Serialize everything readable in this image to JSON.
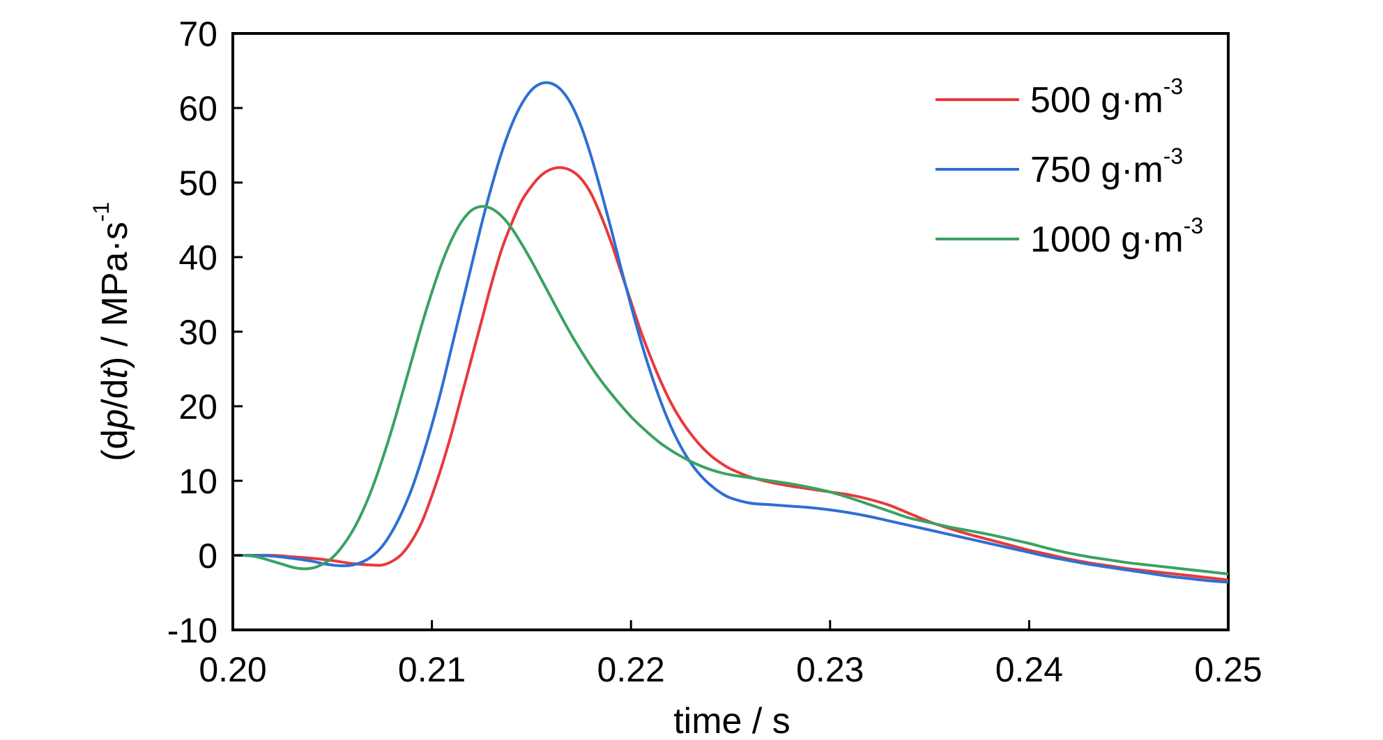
{
  "chart_data": {
    "type": "line",
    "title": "",
    "xlabel": "time / s",
    "ylabel": {
      "prefix": "(d",
      "p": "p",
      "mid": "/d",
      "t": "t",
      "suffix": ") / MPa·s",
      "exponent": "-1"
    },
    "xlim": [
      0.2,
      0.25
    ],
    "ylim": [
      -10,
      70
    ],
    "x_ticks": [
      "0.20",
      "0.21",
      "0.22",
      "0.23",
      "0.24",
      "0.25"
    ],
    "y_ticks": [
      "-10",
      "0",
      "10",
      "20",
      "30",
      "40",
      "50",
      "60",
      "70"
    ],
    "grid": false,
    "legend_position": "top-right",
    "series": [
      {
        "name": "500 g·m",
        "name_exponent": "-3",
        "color": "#e8393b",
        "points": [
          [
            0.2,
            0
          ],
          [
            0.202,
            0
          ],
          [
            0.203,
            -0.2
          ],
          [
            0.204,
            -0.4
          ],
          [
            0.205,
            -0.7
          ],
          [
            0.206,
            -1.1
          ],
          [
            0.207,
            -1.3
          ],
          [
            0.2075,
            -1.3
          ],
          [
            0.208,
            -0.8
          ],
          [
            0.2085,
            0.2
          ],
          [
            0.209,
            2
          ],
          [
            0.2095,
            4.5
          ],
          [
            0.21,
            8
          ],
          [
            0.2105,
            12
          ],
          [
            0.211,
            16.5
          ],
          [
            0.2115,
            21.5
          ],
          [
            0.212,
            26.5
          ],
          [
            0.2125,
            31.5
          ],
          [
            0.213,
            36.5
          ],
          [
            0.2135,
            41
          ],
          [
            0.214,
            44.5
          ],
          [
            0.2145,
            47.5
          ],
          [
            0.215,
            49.5
          ],
          [
            0.2155,
            51
          ],
          [
            0.216,
            51.8
          ],
          [
            0.2165,
            52
          ],
          [
            0.217,
            51.6
          ],
          [
            0.2175,
            50.5
          ],
          [
            0.218,
            48.5
          ],
          [
            0.2185,
            45.5
          ],
          [
            0.219,
            42
          ],
          [
            0.2195,
            38
          ],
          [
            0.22,
            34
          ],
          [
            0.2205,
            30
          ],
          [
            0.221,
            26.5
          ],
          [
            0.2215,
            23.3
          ],
          [
            0.222,
            20.5
          ],
          [
            0.2225,
            18.2
          ],
          [
            0.223,
            16.3
          ],
          [
            0.2235,
            14.7
          ],
          [
            0.224,
            13.4
          ],
          [
            0.2245,
            12.4
          ],
          [
            0.225,
            11.6
          ],
          [
            0.226,
            10.5
          ],
          [
            0.227,
            9.8
          ],
          [
            0.228,
            9.3
          ],
          [
            0.229,
            8.9
          ],
          [
            0.23,
            8.5
          ],
          [
            0.231,
            8.1
          ],
          [
            0.232,
            7.5
          ],
          [
            0.233,
            6.7
          ],
          [
            0.234,
            5.6
          ],
          [
            0.235,
            4.5
          ],
          [
            0.236,
            3.6
          ],
          [
            0.237,
            2.8
          ],
          [
            0.238,
            2.1
          ],
          [
            0.239,
            1.4
          ],
          [
            0.24,
            0.7
          ],
          [
            0.241,
            0.1
          ],
          [
            0.242,
            -0.5
          ],
          [
            0.243,
            -1
          ],
          [
            0.244,
            -1.4
          ],
          [
            0.245,
            -1.8
          ],
          [
            0.246,
            -2.1
          ],
          [
            0.247,
            -2.4
          ],
          [
            0.248,
            -2.7
          ],
          [
            0.249,
            -3
          ],
          [
            0.25,
            -3.3
          ]
        ]
      },
      {
        "name": "750 g·m",
        "name_exponent": "-3",
        "color": "#2e6fd2",
        "points": [
          [
            0.2,
            0
          ],
          [
            0.201,
            0
          ],
          [
            0.202,
            -0.1
          ],
          [
            0.203,
            -0.4
          ],
          [
            0.204,
            -0.8
          ],
          [
            0.2045,
            -1.1
          ],
          [
            0.205,
            -1.3
          ],
          [
            0.2055,
            -1.4
          ],
          [
            0.206,
            -1.3
          ],
          [
            0.2065,
            -0.9
          ],
          [
            0.207,
            -0.1
          ],
          [
            0.2075,
            1.2
          ],
          [
            0.208,
            3.2
          ],
          [
            0.2085,
            5.8
          ],
          [
            0.209,
            9
          ],
          [
            0.2095,
            13
          ],
          [
            0.21,
            17.5
          ],
          [
            0.2105,
            22.5
          ],
          [
            0.211,
            28
          ],
          [
            0.2115,
            33.5
          ],
          [
            0.212,
            39
          ],
          [
            0.2125,
            44.5
          ],
          [
            0.213,
            49.5
          ],
          [
            0.2135,
            54
          ],
          [
            0.214,
            57.7
          ],
          [
            0.2145,
            60.5
          ],
          [
            0.215,
            62.4
          ],
          [
            0.2155,
            63.3
          ],
          [
            0.216,
            63.3
          ],
          [
            0.2165,
            62.4
          ],
          [
            0.217,
            60.5
          ],
          [
            0.2175,
            57.5
          ],
          [
            0.218,
            53.5
          ],
          [
            0.2185,
            48.8
          ],
          [
            0.219,
            43.8
          ],
          [
            0.2195,
            38.5
          ],
          [
            0.22,
            33.5
          ],
          [
            0.2205,
            28.7
          ],
          [
            0.221,
            24.4
          ],
          [
            0.2215,
            20.6
          ],
          [
            0.222,
            17.3
          ],
          [
            0.2225,
            14.6
          ],
          [
            0.223,
            12.4
          ],
          [
            0.2235,
            10.7
          ],
          [
            0.224,
            9.4
          ],
          [
            0.2245,
            8.4
          ],
          [
            0.225,
            7.7
          ],
          [
            0.226,
            7
          ],
          [
            0.227,
            6.8
          ],
          [
            0.228,
            6.6
          ],
          [
            0.229,
            6.4
          ],
          [
            0.23,
            6.1
          ],
          [
            0.231,
            5.7
          ],
          [
            0.232,
            5.2
          ],
          [
            0.233,
            4.6
          ],
          [
            0.234,
            4
          ],
          [
            0.235,
            3.4
          ],
          [
            0.236,
            2.8
          ],
          [
            0.237,
            2.2
          ],
          [
            0.238,
            1.6
          ],
          [
            0.239,
            1
          ],
          [
            0.24,
            0.4
          ],
          [
            0.241,
            -0.2
          ],
          [
            0.242,
            -0.7
          ],
          [
            0.243,
            -1.2
          ],
          [
            0.244,
            -1.6
          ],
          [
            0.245,
            -2
          ],
          [
            0.246,
            -2.4
          ],
          [
            0.247,
            -2.8
          ],
          [
            0.248,
            -3.1
          ],
          [
            0.249,
            -3.4
          ],
          [
            0.25,
            -3.6
          ]
        ]
      },
      {
        "name": "1000 g·m",
        "name_exponent": "-3",
        "color": "#3aa263",
        "points": [
          [
            0.2,
            0
          ],
          [
            0.2005,
            0
          ],
          [
            0.201,
            -0.1
          ],
          [
            0.2015,
            -0.4
          ],
          [
            0.202,
            -0.8
          ],
          [
            0.2025,
            -1.2
          ],
          [
            0.203,
            -1.6
          ],
          [
            0.2035,
            -1.8
          ],
          [
            0.204,
            -1.7
          ],
          [
            0.2045,
            -1.2
          ],
          [
            0.205,
            -0.3
          ],
          [
            0.2055,
            1.2
          ],
          [
            0.206,
            3.2
          ],
          [
            0.2065,
            5.8
          ],
          [
            0.207,
            9
          ],
          [
            0.2075,
            12.8
          ],
          [
            0.208,
            17
          ],
          [
            0.2085,
            21.6
          ],
          [
            0.209,
            26.3
          ],
          [
            0.2095,
            31
          ],
          [
            0.21,
            35.3
          ],
          [
            0.2105,
            39.2
          ],
          [
            0.211,
            42.4
          ],
          [
            0.2115,
            44.8
          ],
          [
            0.212,
            46.3
          ],
          [
            0.2125,
            46.8
          ],
          [
            0.213,
            46.5
          ],
          [
            0.2135,
            45.5
          ],
          [
            0.214,
            43.9
          ],
          [
            0.2145,
            41.8
          ],
          [
            0.215,
            39.5
          ],
          [
            0.2155,
            37
          ],
          [
            0.216,
            34.5
          ],
          [
            0.2165,
            32
          ],
          [
            0.217,
            29.6
          ],
          [
            0.2175,
            27.4
          ],
          [
            0.218,
            25.3
          ],
          [
            0.2185,
            23.4
          ],
          [
            0.219,
            21.7
          ],
          [
            0.2195,
            20.1
          ],
          [
            0.22,
            18.6
          ],
          [
            0.2205,
            17.3
          ],
          [
            0.221,
            16.1
          ],
          [
            0.2215,
            15
          ],
          [
            0.222,
            14.1
          ],
          [
            0.2225,
            13.3
          ],
          [
            0.223,
            12.6
          ],
          [
            0.2235,
            12
          ],
          [
            0.224,
            11.5
          ],
          [
            0.2245,
            11.1
          ],
          [
            0.225,
            10.8
          ],
          [
            0.226,
            10.4
          ],
          [
            0.227,
            10
          ],
          [
            0.228,
            9.6
          ],
          [
            0.229,
            9.1
          ],
          [
            0.23,
            8.5
          ],
          [
            0.231,
            7.7
          ],
          [
            0.232,
            6.8
          ],
          [
            0.233,
            5.9
          ],
          [
            0.234,
            5
          ],
          [
            0.235,
            4.4
          ],
          [
            0.236,
            3.8
          ],
          [
            0.237,
            3.3
          ],
          [
            0.238,
            2.8
          ],
          [
            0.239,
            2.2
          ],
          [
            0.24,
            1.6
          ],
          [
            0.241,
            0.9
          ],
          [
            0.242,
            0.3
          ],
          [
            0.243,
            -0.2
          ],
          [
            0.244,
            -0.6
          ],
          [
            0.245,
            -1
          ],
          [
            0.246,
            -1.3
          ],
          [
            0.247,
            -1.6
          ],
          [
            0.248,
            -1.9
          ],
          [
            0.249,
            -2.2
          ],
          [
            0.25,
            -2.5
          ]
        ]
      }
    ]
  }
}
